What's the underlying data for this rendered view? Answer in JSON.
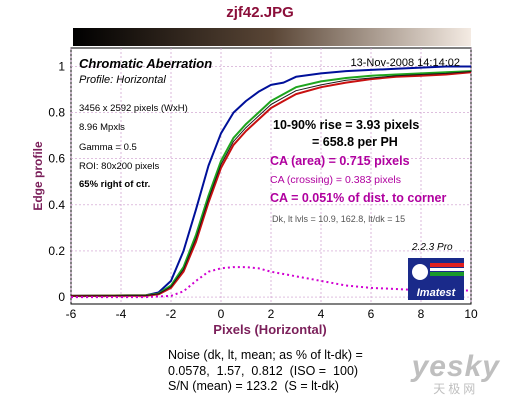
{
  "page": {
    "title": "zjf42.JPG",
    "noise_lines": [
      "Noise (dk, lt, mean; as % of lt-dk) =",
      "0.0578,  1.57,  0.812  (ISO =  100)",
      "S/N (mean) = 123.2  (S = lt-dk)"
    ],
    "watermark": {
      "main": "yesky",
      "sub": "天极网"
    }
  },
  "colors": {
    "background": "#ffffff",
    "grid": "#cc99cc",
    "axis_label": "#7b1f5a",
    "title": "#8b0f3a",
    "ca_text": "#b0009f",
    "blue_curve": "#00109a",
    "green_curve": "#1ea51e",
    "red_curve": "#c81010",
    "ca_curve": "#d100d1",
    "black_curve": "#1a1a1a"
  },
  "chart_data": {
    "type": "line",
    "title": "Chromatic Aberration",
    "subtitle": "Profile: Horizontal",
    "date": "13-Nov-2008 14:14:02",
    "xlabel": "Pixels (Horizontal)",
    "ylabel": "Edge profile",
    "xlim": [
      -6,
      10
    ],
    "ylim": [
      -0.03,
      1.08
    ],
    "xticks": [
      -6,
      -4,
      -2,
      0,
      2,
      4,
      6,
      8,
      10
    ],
    "yticks": [
      0,
      0.2,
      0.4,
      0.6,
      0.8,
      1
    ],
    "xtick_labels": [
      "-6",
      "-4",
      "-2",
      "0",
      "2",
      "4",
      "6",
      "8",
      "10"
    ],
    "ytick_labels": [
      "0",
      "0.2",
      "0.4",
      "0.6",
      "0.8",
      "1"
    ],
    "grid": true,
    "image_info": [
      "3456 x 2592 pixels (WxH)",
      "8.96 Mpxls",
      "Gamma = 0.5",
      "ROI: 80x200 pixels",
      "65% right of ctr."
    ],
    "rise_text": [
      "10-90% rise = 3.93 pixels",
      "= 658.8 per PH"
    ],
    "ca_area": "CA (area) = 0.715 pixels",
    "ca_crossing": "CA (crossing) = 0.383 pixels",
    "ca_corner": "CA = 0.051% of dist. to corner",
    "dk_text": "Dk, lt lvls = 10.9, 162.8,  lt/dk = 15",
    "version": "2.2.3  Pro",
    "logo_text": "Imatest",
    "series": [
      {
        "color": "blue",
        "style": "solid",
        "x": [
          -6,
          -3,
          -2.5,
          -2,
          -1.5,
          -1,
          -0.5,
          0,
          0.5,
          1,
          1.5,
          2,
          2.5,
          3,
          4,
          5,
          6,
          7,
          8,
          9,
          10
        ],
        "y": [
          0.005,
          0.008,
          0.02,
          0.07,
          0.2,
          0.38,
          0.57,
          0.71,
          0.8,
          0.85,
          0.89,
          0.92,
          0.93,
          0.955,
          0.97,
          0.98,
          0.985,
          0.99,
          0.995,
          1.0,
          1.0
        ]
      },
      {
        "color": "green",
        "style": "solid",
        "x": [
          -6,
          -3,
          -2.5,
          -2,
          -1.5,
          -1,
          -0.5,
          0,
          0.5,
          1,
          1.5,
          2,
          2.5,
          3,
          4,
          5,
          6,
          7,
          8,
          9,
          10
        ],
        "y": [
          0.005,
          0.008,
          0.015,
          0.05,
          0.13,
          0.27,
          0.44,
          0.59,
          0.69,
          0.75,
          0.8,
          0.85,
          0.88,
          0.91,
          0.935,
          0.95,
          0.96,
          0.965,
          0.97,
          0.975,
          0.98
        ]
      },
      {
        "color": "red",
        "style": "solid",
        "x": [
          -6,
          -3,
          -2.5,
          -2,
          -1.5,
          -1,
          -0.5,
          0,
          0.5,
          1,
          1.5,
          2,
          2.5,
          3,
          4,
          5,
          6,
          7,
          8,
          9,
          10
        ],
        "y": [
          0.005,
          0.006,
          0.012,
          0.04,
          0.11,
          0.24,
          0.41,
          0.56,
          0.66,
          0.72,
          0.77,
          0.82,
          0.85,
          0.88,
          0.91,
          0.93,
          0.945,
          0.955,
          0.96,
          0.965,
          0.975
        ]
      },
      {
        "color": "black",
        "style": "solid",
        "x": [
          -6,
          -3,
          -2.5,
          -2,
          -1.5,
          -1,
          -0.5,
          0,
          0.5,
          1,
          1.5,
          2,
          2.5,
          3,
          4,
          5,
          6,
          7,
          8,
          9,
          10
        ],
        "y": [
          0.005,
          0.007,
          0.014,
          0.045,
          0.12,
          0.255,
          0.425,
          0.575,
          0.675,
          0.735,
          0.785,
          0.835,
          0.865,
          0.895,
          0.92,
          0.94,
          0.95,
          0.96,
          0.965,
          0.97,
          0.978
        ]
      },
      {
        "color": "magenta",
        "style": "dotted",
        "x": [
          -6,
          -3,
          -2,
          -1.5,
          -1,
          -0.5,
          0,
          0.5,
          1,
          1.5,
          2,
          3,
          4,
          5,
          6,
          7,
          8,
          9,
          10
        ],
        "y": [
          0,
          0,
          0.005,
          0.025,
          0.07,
          0.11,
          0.125,
          0.13,
          0.13,
          0.125,
          0.11,
          0.09,
          0.07,
          0.05,
          0.04,
          0.035,
          0.03,
          0.03,
          0.028
        ]
      }
    ]
  }
}
